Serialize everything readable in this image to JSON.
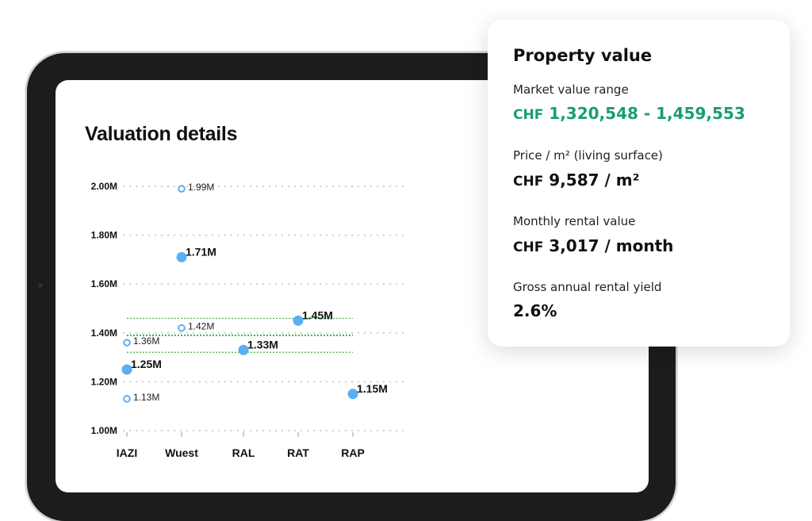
{
  "valuation": {
    "title": "Valuation details"
  },
  "card": {
    "title": "Property value",
    "market_label": "Market value range",
    "market_currency": "CHF",
    "market_value": "1,320,548 - 1,459,553",
    "price_label": "Price / m² (living surface)",
    "price_currency": "CHF",
    "price_value": "9,587 / m²",
    "rent_label": "Monthly rental value",
    "rent_currency": "CHF",
    "rent_value": "3,017 / month",
    "yield_label": "Gross annual rental yield",
    "yield_value": "2.6%",
    "accent_color": "#17a06a"
  },
  "chart_data": {
    "type": "scatter",
    "categories": [
      "IAZI",
      "Wuest",
      "RAL",
      "RAT",
      "RAP"
    ],
    "y_ticks": [
      "1.00M",
      "1.20M",
      "1.40M",
      "1.60M",
      "1.80M",
      "2.00M"
    ],
    "ylim": [
      1.0,
      2.0
    ],
    "grid": true,
    "point_color": "#5aaef5",
    "range_color": "#3cb043",
    "range_lines": [
      1.320548,
      1.39,
      1.459553
    ],
    "points": [
      {
        "category": "IAZI",
        "value": 1.36,
        "label": "1.36M",
        "style": "hollow"
      },
      {
        "category": "IAZI",
        "value": 1.25,
        "label": "1.25M",
        "style": "solid"
      },
      {
        "category": "IAZI",
        "value": 1.13,
        "label": "1.13M",
        "style": "hollow"
      },
      {
        "category": "Wuest",
        "value": 1.99,
        "label": "1.99M",
        "style": "hollow"
      },
      {
        "category": "Wuest",
        "value": 1.71,
        "label": "1.71M",
        "style": "solid"
      },
      {
        "category": "Wuest",
        "value": 1.42,
        "label": "1.42M",
        "style": "hollow"
      },
      {
        "category": "RAL",
        "value": 1.33,
        "label": "1.33M",
        "style": "solid"
      },
      {
        "category": "RAT",
        "value": 1.45,
        "label": "1.45M",
        "style": "solid"
      },
      {
        "category": "RAP",
        "value": 1.15,
        "label": "1.15M",
        "style": "solid"
      }
    ]
  }
}
